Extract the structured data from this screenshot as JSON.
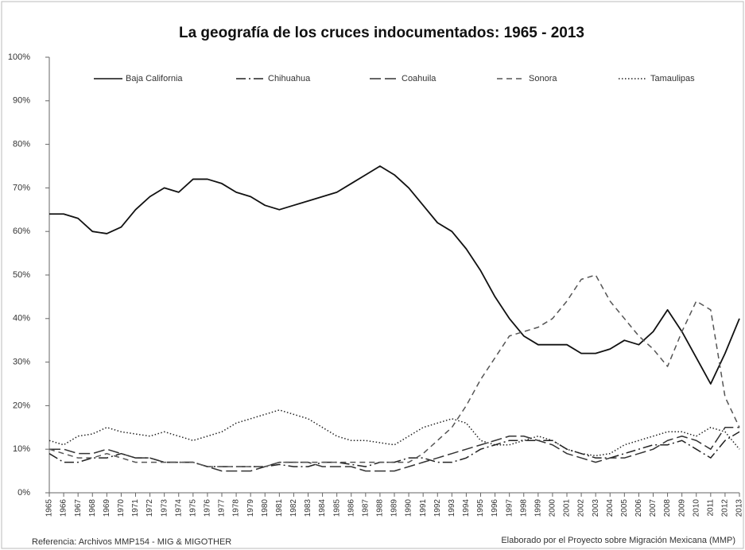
{
  "chart_data": {
    "type": "line",
    "title": "La geografía de los cruces indocumentados: 1965 - 2013",
    "categories": [
      "1965",
      "1966",
      "1967",
      "1968",
      "1969",
      "1970",
      "1971",
      "1972",
      "1973",
      "1974",
      "1975",
      "1976",
      "1977",
      "1978",
      "1979",
      "1980",
      "1981",
      "1982",
      "1983",
      "1984",
      "1985",
      "1986",
      "1987",
      "1988",
      "1989",
      "1990",
      "1991",
      "1992",
      "1993",
      "1994",
      "1995",
      "1996",
      "1997",
      "1998",
      "1999",
      "2000",
      "2001",
      "2002",
      "2003",
      "2004",
      "2005",
      "2006",
      "2007",
      "2008",
      "2009",
      "2010",
      "2011",
      "2012",
      "2013"
    ],
    "series": [
      {
        "name": "Baja California",
        "color": "#111111",
        "dash": "solid",
        "values": [
          64,
          64,
          63,
          60,
          59.5,
          61,
          65,
          68,
          70,
          69,
          72,
          72,
          71,
          69,
          68,
          66,
          65,
          66,
          67,
          68,
          69,
          71,
          73,
          75,
          73,
          70,
          66,
          62,
          60,
          56,
          51,
          45,
          40,
          36,
          34,
          34,
          34,
          32,
          32,
          33,
          35,
          34,
          37,
          42,
          37,
          31,
          25,
          32,
          40
        ]
      },
      {
        "name": "Chihuahua",
        "color": "#222222",
        "dash": "dashdot",
        "values": [
          9,
          7,
          7,
          8,
          8,
          9,
          8,
          8,
          7,
          7,
          7,
          6,
          6,
          6,
          6,
          6,
          6.5,
          6,
          6,
          7,
          7,
          6.5,
          6,
          7,
          7,
          8,
          8,
          7,
          7,
          8,
          10,
          11,
          12,
          12,
          12,
          12,
          10,
          9,
          8,
          8,
          9,
          10,
          11,
          11,
          12,
          10,
          8,
          12,
          14
        ]
      },
      {
        "name": "Coahuila",
        "color": "#333333",
        "dash": "longdash",
        "values": [
          10,
          10,
          9,
          9,
          10,
          9,
          8,
          8,
          7,
          7,
          7,
          6,
          5,
          5,
          5,
          6,
          7,
          7,
          7,
          6,
          6,
          6,
          5,
          5,
          5,
          6,
          7,
          8,
          9,
          10,
          11,
          12,
          13,
          13,
          12,
          11,
          9,
          8,
          7,
          8,
          8,
          9,
          10,
          12,
          13,
          12,
          10,
          15,
          15
        ]
      },
      {
        "name": "Sonora",
        "color": "#555555",
        "dash": "dash",
        "values": [
          10,
          9,
          8,
          8,
          9,
          8,
          7,
          7,
          7,
          7,
          7,
          6,
          6,
          6,
          6,
          6,
          7,
          7,
          7,
          7,
          7,
          7,
          7,
          7,
          7,
          7,
          9,
          12,
          15,
          20,
          26,
          31,
          36,
          37,
          38,
          40,
          44,
          49,
          50,
          44,
          40,
          36,
          33,
          29,
          37,
          44,
          42,
          22,
          15
        ]
      },
      {
        "name": "Tamaulipas",
        "color": "#222222",
        "dash": "dot",
        "values": [
          12,
          11,
          13,
          13.5,
          15,
          14,
          13.5,
          13,
          14,
          13,
          12,
          13,
          14,
          16,
          17,
          18,
          19,
          18,
          17,
          15,
          13,
          12,
          12,
          11.5,
          11,
          13,
          15,
          16,
          17,
          16,
          12,
          11,
          11,
          12,
          13,
          12,
          10,
          9,
          8.5,
          9,
          11,
          12,
          13,
          14,
          14,
          13,
          15,
          14,
          10
        ]
      }
    ],
    "ylim": [
      0,
      100
    ],
    "yticks": [
      {
        "value": 0,
        "label": "0%"
      },
      {
        "value": 10,
        "label": "10%"
      },
      {
        "value": 20,
        "label": "20%"
      },
      {
        "value": 30,
        "label": "30%"
      },
      {
        "value": 40,
        "label": "40%"
      },
      {
        "value": 50,
        "label": "50%"
      },
      {
        "value": 60,
        "label": "60%"
      },
      {
        "value": 70,
        "label": "70%"
      },
      {
        "value": 80,
        "label": "80%"
      },
      {
        "value": 90,
        "label": "90%"
      },
      {
        "value": 100,
        "label": "100%"
      }
    ],
    "grid": false,
    "legend": "top",
    "footer_left": "Referencia: Archivos MMP154 - MIG & MIGOTHER",
    "footer_right": "Elaborado por el Proyecto sobre Migración Mexicana (MMP)"
  }
}
